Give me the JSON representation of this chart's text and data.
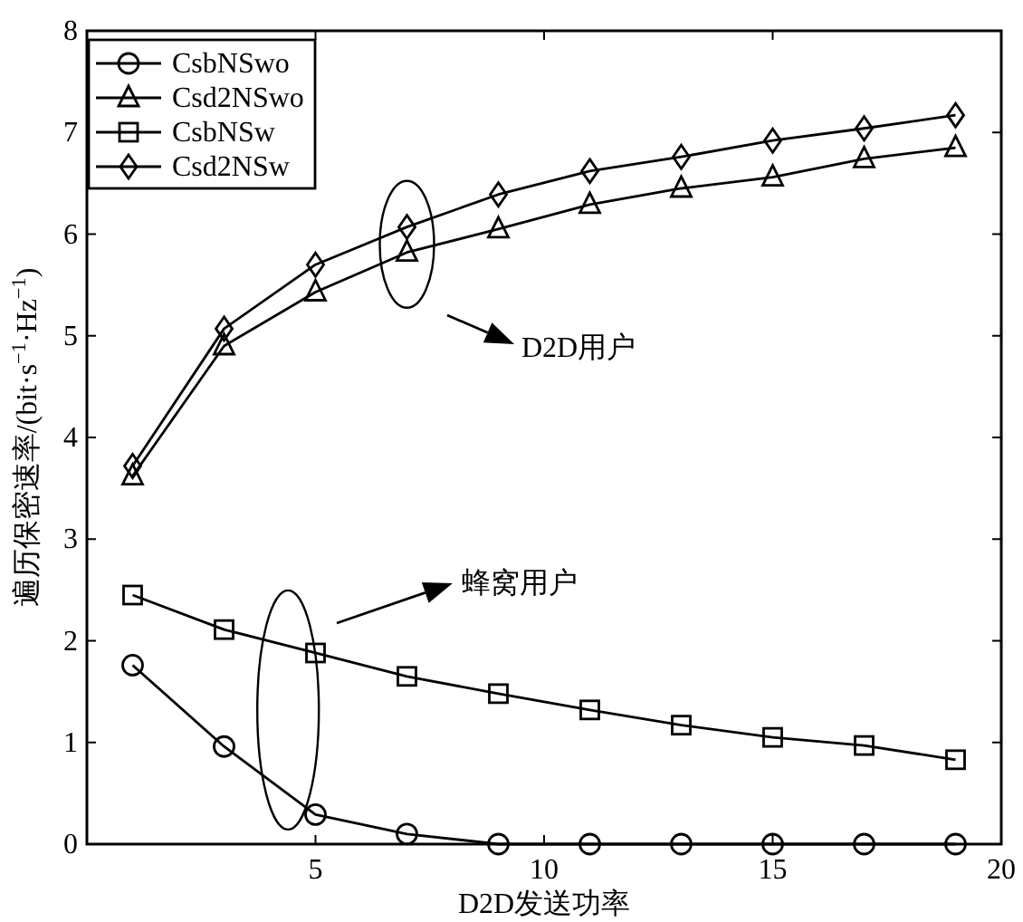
{
  "chart_data": {
    "type": "line",
    "xlabel": "D2D发送功率",
    "ylabel": "遍历保密速率/(bit·s$^{−1}$·Hz$^{−1}$)",
    "x": [
      1,
      3,
      5,
      7,
      9,
      11,
      13,
      15,
      17,
      19
    ],
    "xlim": [
      0,
      20
    ],
    "xticks": [
      5,
      10,
      15,
      20
    ],
    "ylim": [
      0,
      8
    ],
    "yticks": [
      0,
      1,
      2,
      3,
      4,
      5,
      6,
      7,
      8
    ],
    "grid": false,
    "legend": "top left",
    "line_style": "solid",
    "series": [
      {
        "name": "CsbNSwo",
        "color": "#000000",
        "marker": "circle",
        "values": [
          1.76,
          0.96,
          0.29,
          0.1,
          0,
          0,
          0,
          0,
          0,
          0
        ]
      },
      {
        "name": "Csd2NSwo",
        "color": "#000000",
        "marker": "triangle",
        "values": [
          3.62,
          4.9,
          5.43,
          5.82,
          6.05,
          6.29,
          6.45,
          6.56,
          6.74,
          6.85
        ]
      },
      {
        "name": "CsbNSw",
        "color": "#000000",
        "marker": "square",
        "values": [
          2.45,
          2.11,
          1.88,
          1.65,
          1.48,
          1.32,
          1.17,
          1.05,
          0.97,
          0.83
        ]
      },
      {
        "name": "Csd2NSw",
        "color": "#000000",
        "marker": "diamond",
        "values": [
          3.72,
          5.07,
          5.7,
          6.07,
          6.39,
          6.62,
          6.76,
          6.92,
          7.04,
          7.17
        ]
      }
    ],
    "annotations": [
      "D2D用户",
      "蜂窝用户"
    ]
  }
}
